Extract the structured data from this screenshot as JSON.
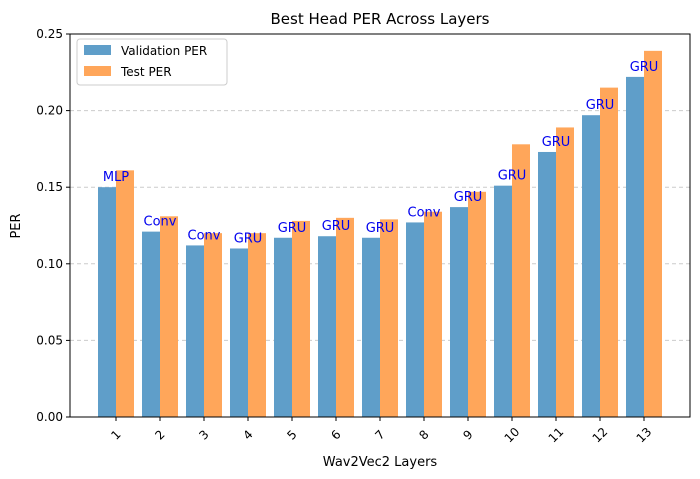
{
  "chart_data": {
    "type": "bar",
    "title": "Best Head PER Across Layers",
    "xlabel": "Wav2Vec2 Layers",
    "ylabel": "PER",
    "categories": [
      "1",
      "2",
      "3",
      "4",
      "5",
      "6",
      "7",
      "8",
      "9",
      "10",
      "11",
      "12",
      "13"
    ],
    "series": [
      {
        "name": "Validation PER",
        "color": "#5f9ec9",
        "values": [
          0.15,
          0.121,
          0.112,
          0.11,
          0.117,
          0.118,
          0.117,
          0.127,
          0.137,
          0.151,
          0.173,
          0.197,
          0.222
        ]
      },
      {
        "name": "Test PER",
        "color": "#ffa65a",
        "values": [
          0.161,
          0.131,
          0.12,
          0.12,
          0.128,
          0.13,
          0.129,
          0.134,
          0.147,
          0.178,
          0.189,
          0.215,
          0.239
        ]
      }
    ],
    "bar_labels": [
      "MLP",
      "Conv",
      "Conv",
      "GRU",
      "GRU",
      "GRU",
      "GRU",
      "Conv",
      "GRU",
      "GRU",
      "GRU",
      "GRU",
      "GRU"
    ],
    "bar_label_color": "#0000ee",
    "ylim": [
      0,
      0.25
    ],
    "yticks": [
      "0.00",
      "0.05",
      "0.10",
      "0.15",
      "0.20",
      "0.25"
    ],
    "ytick_values": [
      0,
      0.05,
      0.1,
      0.15,
      0.2,
      0.25
    ],
    "grid": "y-dashed",
    "legend_position": "top-left"
  }
}
